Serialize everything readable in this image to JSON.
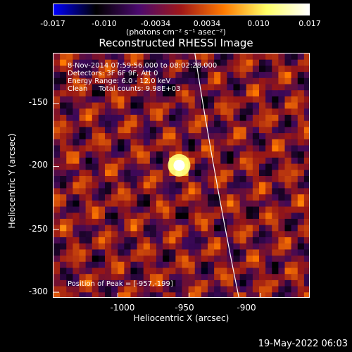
{
  "colorbar": {
    "ticks": [
      "-0.017",
      "-0.010",
      "-0.0034",
      "0.0034",
      "0.010",
      "0.017"
    ],
    "unit": "(photons cm⁻² s⁻¹ asec⁻²)",
    "colors": [
      "#0000ff",
      "#000000",
      "#4b0a6e",
      "#a01818",
      "#ff7a00",
      "#ffff66",
      "#ffffff"
    ]
  },
  "chart_data": {
    "type": "heatmap",
    "title": "Reconstructed RHESSI Image",
    "xlabel": "Heliocentric X (arcsec)",
    "ylabel": "Heliocentric Y (arcsec)",
    "xlim": [
      -1045,
      -865
    ],
    "ylim": [
      -305,
      -110
    ],
    "xticks": [
      -1000,
      -950,
      -900
    ],
    "xtick_labels": [
      "-1000",
      "-950",
      "-900"
    ],
    "yticks": [
      -150,
      -200,
      -250,
      -300
    ],
    "ytick_labels": [
      "-150",
      "-200",
      "-250",
      "-300"
    ],
    "peak": {
      "x": -957,
      "y": -199
    },
    "value_range": [
      -0.017,
      0.017
    ],
    "annotations": {
      "time": "8-Nov-2014 07:59:56.000 to 08:02:28.000",
      "detectors": "Detectors: 3F 6F 9F, Att 0",
      "energy": "Energy Range: 6.0 - 12.0 keV",
      "clean": "Clean     Total counts: 9.98E+03",
      "peak_label": "Position of Peak = [-957,-199]"
    }
  },
  "footer": {
    "date": "19-May-2022 06:03"
  }
}
